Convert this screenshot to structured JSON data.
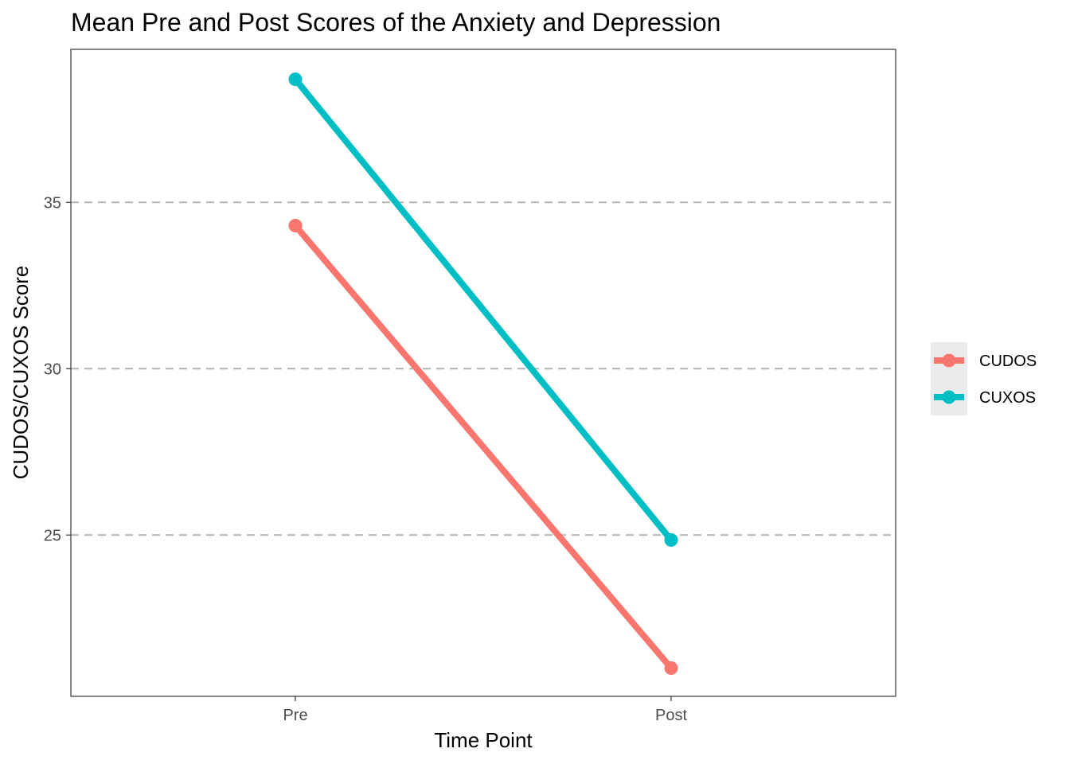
{
  "chart_data": {
    "type": "line",
    "title": "Mean Pre and Post Scores of the Anxiety and Depression",
    "xlabel": "Time Point",
    "ylabel": "CUDOS/CUXOS Score",
    "categories": [
      "Pre",
      "Post"
    ],
    "series": [
      {
        "name": "CUDOS",
        "values": [
          34.3,
          21.0
        ],
        "color": "#F8766D"
      },
      {
        "name": "CUXOS",
        "values": [
          38.7,
          24.85
        ],
        "color": "#00BFC4"
      }
    ],
    "yticks": [
      25,
      30,
      35
    ],
    "yticklabels": [
      "25",
      "30",
      "35"
    ],
    "ylim": [
      20.15,
      39.6
    ],
    "grid": "major-y-dashed",
    "legend_position": "right",
    "colors": {
      "panel_border": "#333333",
      "grid_dashed": "#b3b3b3",
      "legend_bg": "#ebebeb"
    }
  }
}
